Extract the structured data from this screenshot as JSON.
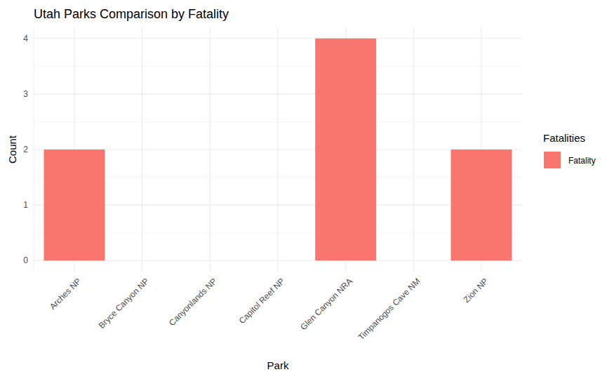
{
  "chart_data": {
    "type": "bar",
    "title": "Utah Parks Comparison by Fatality",
    "x_label": "Park",
    "y_label": "Count",
    "categories": [
      "Arches NP",
      "Bryce Canyon NP",
      "Canyonlands NP",
      "Capitol Reef NP",
      "Glen Canyon NRA",
      "Timpanogos Cave NM",
      "Zion NP"
    ],
    "series": [
      {
        "name": "Fatality",
        "color": "#F8766D",
        "values": [
          2,
          0,
          0,
          0,
          4,
          0,
          2
        ]
      }
    ],
    "legend_title": "Fatalities",
    "legend": "right",
    "ylim": [
      -0.2,
      4.2
    ],
    "yticks": [
      0,
      1,
      2,
      3,
      4
    ],
    "grid": true
  }
}
